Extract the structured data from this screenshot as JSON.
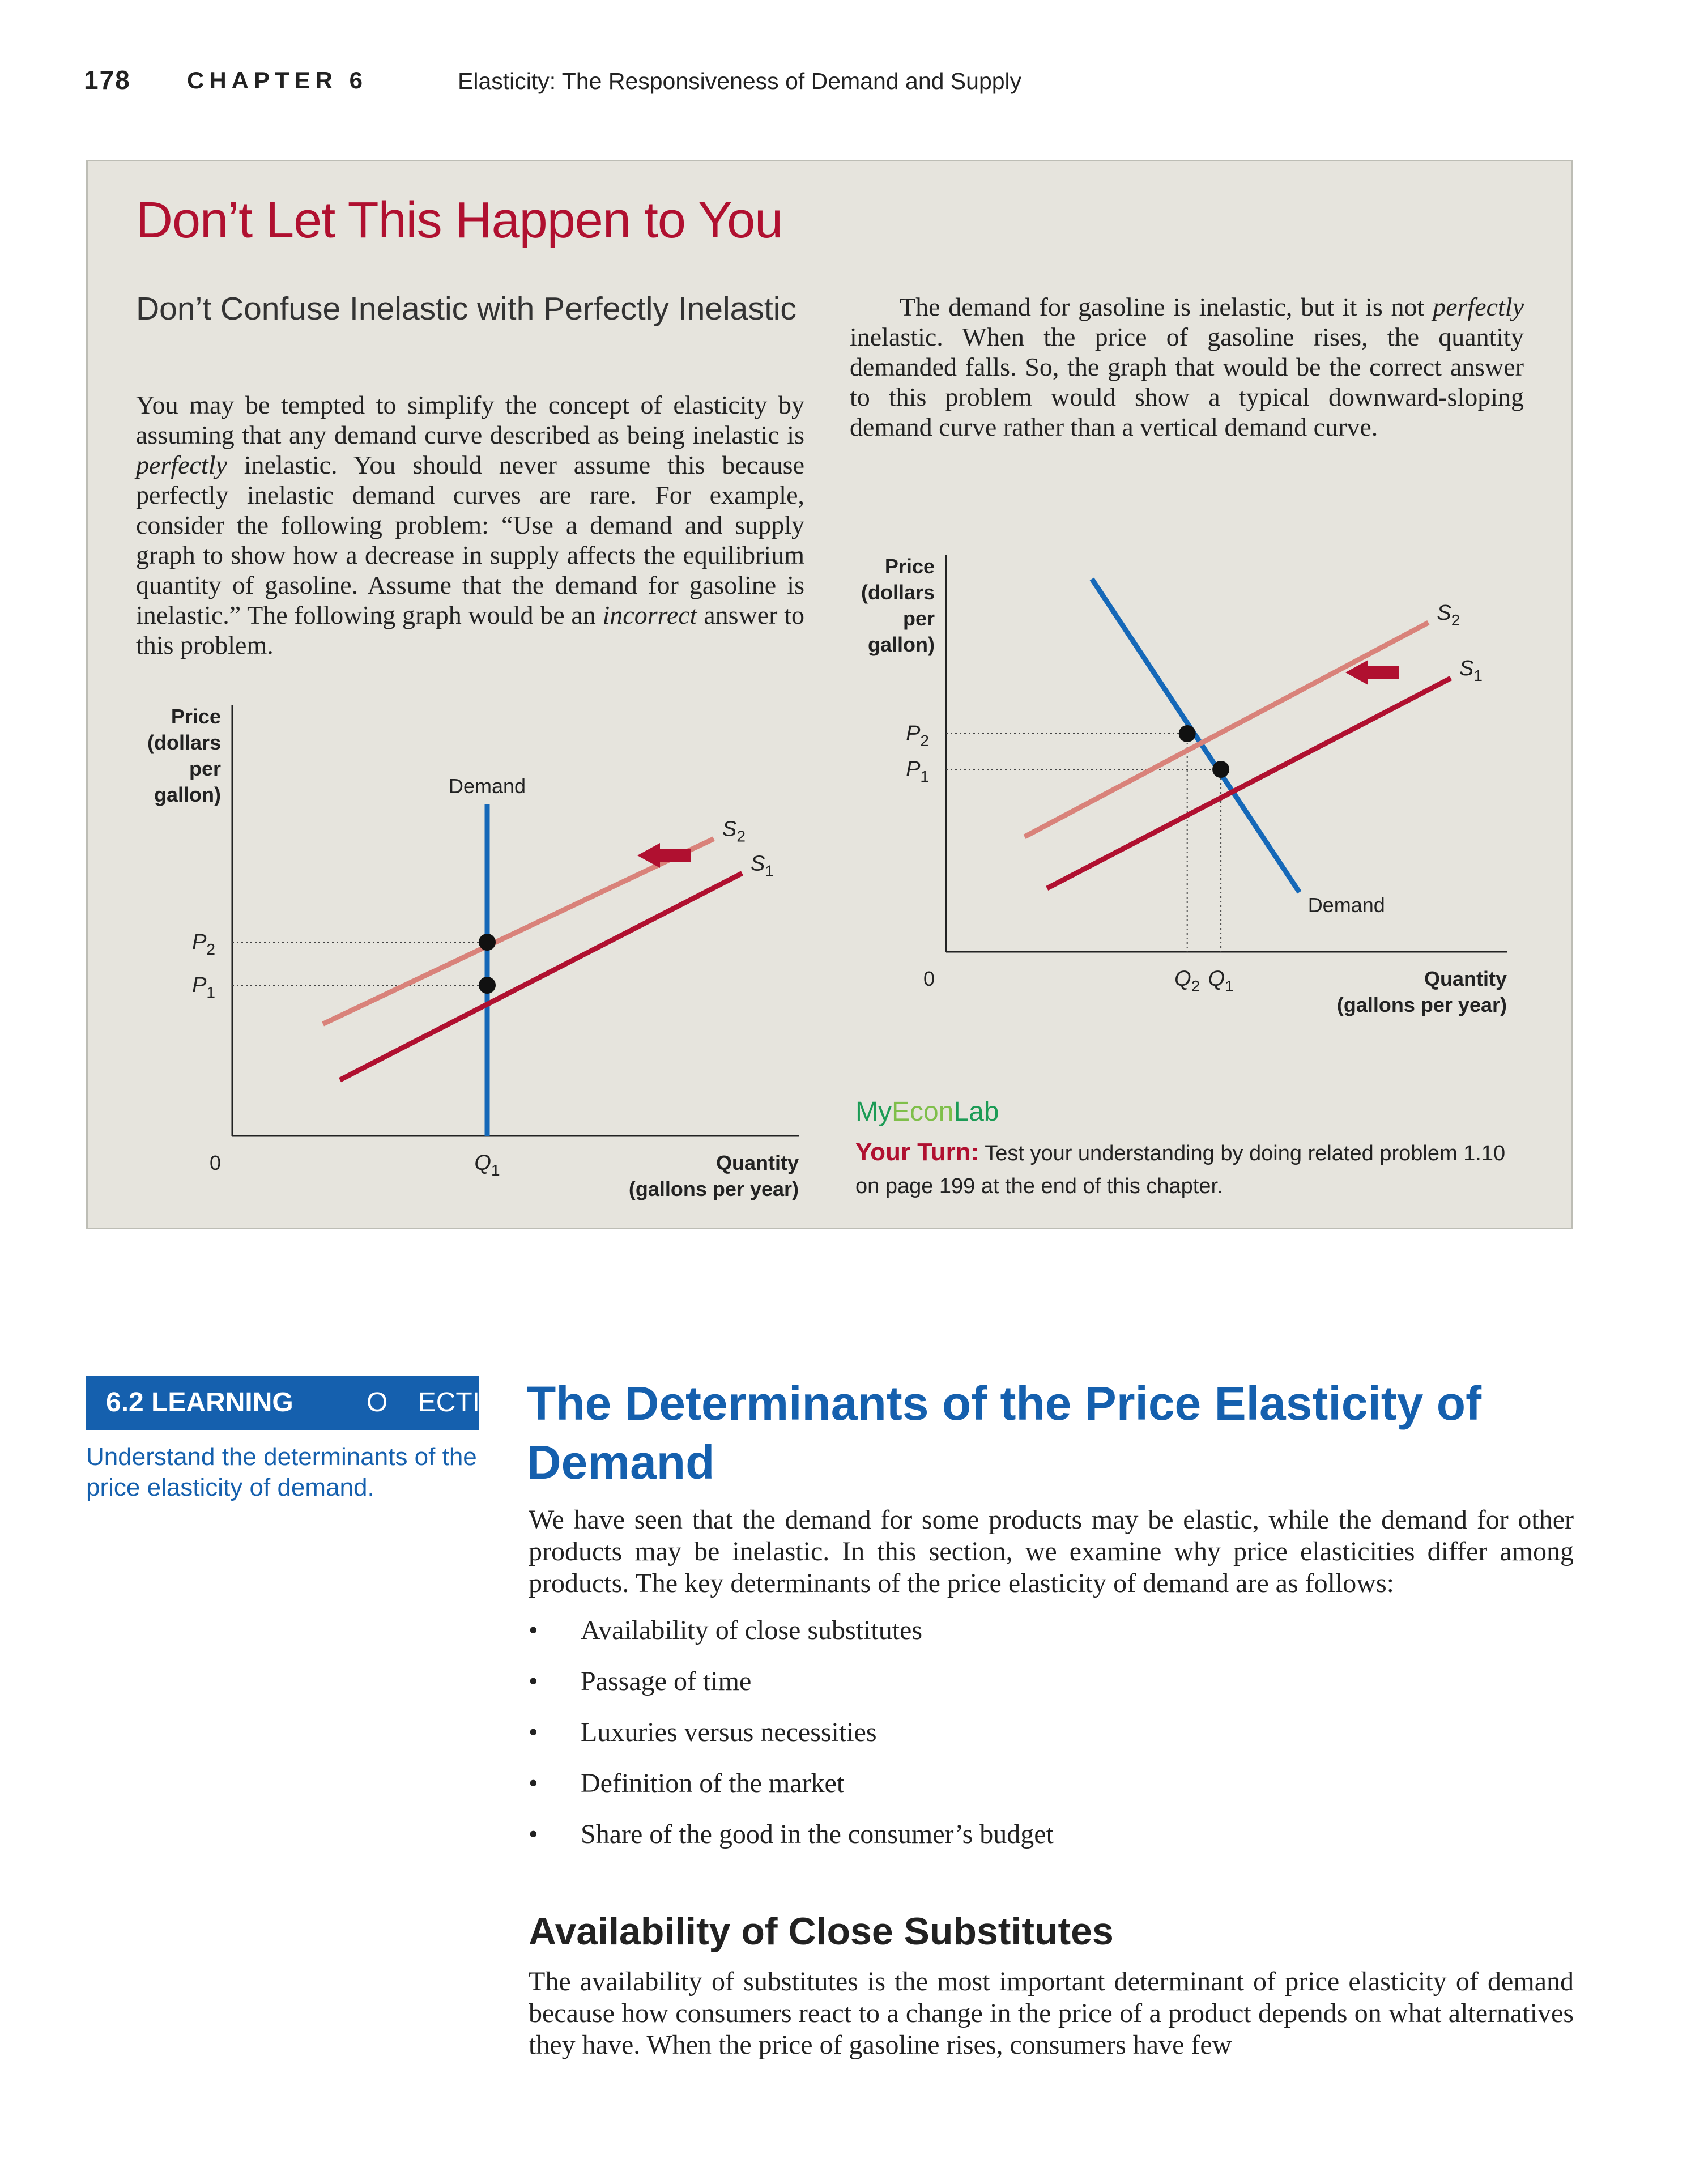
{
  "header": {
    "page_number": "178",
    "chapter": "CHAPTER 6",
    "chapter_title": "Elasticity: The Responsiveness of Demand and Supply"
  },
  "box": {
    "title": "Don’t Let This Happen to You",
    "subtitle": "Don’t Confuse Inelastic with Perfectly Inelastic",
    "left_paragraph": [
      {
        "t": "You may be tempted to simplify the concept of elasticity by assuming that any demand curve described as being inelastic is "
      },
      {
        "t": "perfectly",
        "i": true
      },
      {
        "t": " inelastic. You should never assume this because perfectly inelastic demand curves are rare. For example, consider the following problem: “Use a demand and supply graph to show how a decrease in supply affects the equilibrium quantity of gasoline. Assume that the demand for gasoline is inelastic.” The following graph would be an "
      },
      {
        "t": "incorrect",
        "i": true
      },
      {
        "t": " answer to this problem."
      }
    ],
    "right_paragraph": [
      {
        "t": "The demand for gasoline is inelastic, but it is not "
      },
      {
        "t": "perfectly",
        "i": true
      },
      {
        "t": " inelastic. When the price of gasoline rises, the quantity demanded falls. So, the graph that would be the correct answer to this problem would show a typical downward-sloping demand curve rather than a vertical demand curve."
      }
    ],
    "myeconlab": {
      "my": "My",
      "econ": "Econ",
      "lab": "Lab"
    },
    "your_turn_label": "Your Turn:",
    "your_turn_text": " Test your understanding by doing related problem 1.10 on page 199 at the end of this chapter."
  },
  "chart_data": [
    {
      "type": "line",
      "ylabel": [
        "Price",
        "(dollars",
        "per",
        "gallon)"
      ],
      "xlabel": [
        "Quantity",
        "(gallons per year)"
      ],
      "origin_label": "0",
      "xlim": [
        0,
        10
      ],
      "ylim": [
        0,
        10
      ],
      "series": [
        {
          "name": "Demand",
          "color": "#1568b8",
          "points": [
            [
              4.5,
              0
            ],
            [
              4.5,
              7.7
            ]
          ]
        },
        {
          "name": "S2",
          "color": "#d9827a",
          "points": [
            [
              1.6,
              2.6
            ],
            [
              8.5,
              6.9
            ]
          ]
        },
        {
          "name": "S1",
          "color": "#b01030",
          "points": [
            [
              1.9,
              1.3
            ],
            [
              9.0,
              6.1
            ]
          ]
        }
      ],
      "equilibria": [
        {
          "label": "P2",
          "price": 4.5,
          "quantity": 4.5
        },
        {
          "label": "P1",
          "price": 3.5,
          "quantity": 4.5
        }
      ],
      "x_tick_labels": [
        "Q1"
      ],
      "curve_labels": {
        "demand": "Demand",
        "s2": "S2",
        "s1": "S1"
      },
      "shift_arrow": "left"
    },
    {
      "type": "line",
      "ylabel": [
        "Price",
        "(dollars",
        "per",
        "gallon)"
      ],
      "xlabel": [
        "Quantity",
        "(gallons per year)"
      ],
      "origin_label": "0",
      "xlim": [
        0,
        10
      ],
      "ylim": [
        0,
        10
      ],
      "series": [
        {
          "name": "Demand",
          "color": "#1568b8",
          "points": [
            [
              2.6,
              9.4
            ],
            [
              6.3,
              1.5
            ]
          ]
        },
        {
          "name": "S2",
          "color": "#d9827a",
          "points": [
            [
              1.4,
              2.9
            ],
            [
              8.6,
              8.3
            ]
          ]
        },
        {
          "name": "S1",
          "color": "#b01030",
          "points": [
            [
              1.8,
              1.6
            ],
            [
              9.0,
              6.9
            ]
          ]
        }
      ],
      "equilibria": [
        {
          "label": "P2",
          "price": 5.5,
          "quantity": 4.3
        },
        {
          "label": "P1",
          "price": 4.6,
          "quantity": 4.9
        }
      ],
      "x_tick_labels": [
        "Q2",
        "Q1"
      ],
      "curve_labels": {
        "demand": "Demand",
        "s2": "S2",
        "s1": "S1"
      },
      "shift_arrow": "left"
    }
  ],
  "objective": {
    "number": "6.2 LEARNING",
    "rest": "O    ECTIVE",
    "text": "Understand the determinants of the price elasticity of demand."
  },
  "section": {
    "title": "The Determinants of the Price Elasticity of Demand",
    "paragraph": "We have seen that the demand for some products may be elastic, while the demand for other products may be inelastic. In this section, we examine why price elasticities differ among products. The key determinants of the price elasticity of demand are as follows:",
    "bullets": [
      "Availability of close substitutes",
      "Passage of time",
      "Luxuries versus necessities",
      "Definition of the market",
      "Share of the good in the consumer’s budget"
    ],
    "subheading": "Availability of Close Substitutes",
    "sub_paragraph": "The availability of substitutes is the most important determinant of price elasticity of demand because how consumers react to a change in the price of a product depends on what alternatives they have. When the price of gasoline rises, consumers have few"
  }
}
